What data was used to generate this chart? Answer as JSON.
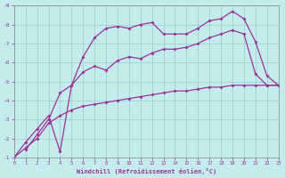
{
  "bg_color": "#c5ecec",
  "line_color": "#993399",
  "grid_color": "#99cccc",
  "xlabel": "Windchill (Refroidissement éolien,°C)",
  "xlim": [
    0,
    23
  ],
  "ylim": [
    -9,
    -1
  ],
  "xticks": [
    0,
    1,
    2,
    3,
    4,
    5,
    6,
    7,
    8,
    9,
    10,
    11,
    12,
    13,
    14,
    15,
    16,
    17,
    18,
    19,
    20,
    21,
    22,
    23
  ],
  "yticks": [
    -9,
    -8,
    -7,
    -6,
    -5,
    -4,
    -3,
    -2,
    -1
  ],
  "line1_x": [
    0,
    1,
    2,
    3,
    4,
    5,
    6,
    7,
    8,
    9,
    10,
    11,
    12,
    13,
    14,
    15,
    16,
    17,
    18,
    19,
    20,
    21,
    22,
    23
  ],
  "line1_y": [
    -1.0,
    -1.5,
    -2.0,
    -2.8,
    -3.2,
    -3.5,
    -3.7,
    -3.8,
    -3.9,
    -4.0,
    -4.1,
    -4.2,
    -4.3,
    -4.4,
    -4.5,
    -4.5,
    -4.6,
    -4.7,
    -4.7,
    -4.8,
    -4.8,
    -4.8,
    -4.8,
    -4.8
  ],
  "line2_x": [
    0,
    1,
    2,
    3,
    4,
    5,
    6,
    7,
    8,
    9,
    10,
    11,
    12,
    13,
    14,
    15,
    16,
    17,
    18,
    19,
    20,
    21,
    22,
    23
  ],
  "line2_y": [
    -1.0,
    -1.8,
    -2.5,
    -3.2,
    -1.3,
    -4.8,
    -5.5,
    -5.8,
    -5.6,
    -6.1,
    -6.3,
    -6.2,
    -6.5,
    -6.7,
    -6.7,
    -6.8,
    -7.0,
    -7.3,
    -7.5,
    -7.7,
    -7.5,
    -5.4,
    -4.8,
    -4.8
  ],
  "line3_x": [
    1,
    2,
    3,
    4,
    5,
    6,
    7,
    8,
    9,
    10,
    11,
    12,
    13,
    14,
    15,
    16,
    17,
    18,
    19,
    20,
    21,
    22,
    23
  ],
  "line3_y": [
    -1.4,
    -2.2,
    -3.0,
    -4.4,
    -4.8,
    -6.3,
    -7.3,
    -7.8,
    -7.9,
    -7.8,
    -8.0,
    -8.1,
    -7.5,
    -7.5,
    -7.5,
    -7.8,
    -8.2,
    -8.3,
    -8.7,
    -8.3,
    -7.1,
    -5.3,
    -4.8
  ]
}
